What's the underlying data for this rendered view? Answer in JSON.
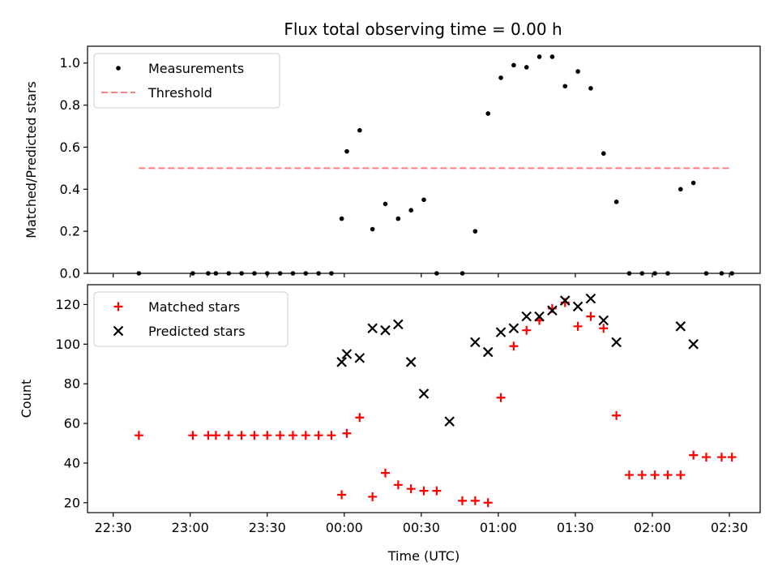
{
  "chart_data": [
    {
      "type": "scatter",
      "title": "Flux total observing time = 0.00 h",
      "xlabel": "",
      "ylabel": "Matched/Predicted stars",
      "ylim": [
        0,
        1.08
      ],
      "yticks": [
        "0.0",
        "0.2",
        "0.4",
        "0.6",
        "0.8",
        "1.0"
      ],
      "xlim": [
        "22:20",
        "02:42"
      ],
      "legend_position": "top-left",
      "series": [
        {
          "name": "Measurements",
          "color": "#000000",
          "marker": "dot",
          "x": [
            "22:40",
            "23:01",
            "23:07",
            "23:10",
            "23:15",
            "23:20",
            "23:25",
            "23:30",
            "23:35",
            "23:40",
            "23:45",
            "23:50",
            "23:55",
            "23:59",
            "00:01",
            "00:06",
            "00:11",
            "00:16",
            "00:21",
            "00:26",
            "00:31",
            "00:36",
            "00:46",
            "00:51",
            "00:56",
            "01:01",
            "01:06",
            "01:11",
            "01:16",
            "01:21",
            "01:26",
            "01:31",
            "01:36",
            "01:41",
            "01:46",
            "01:51",
            "01:56",
            "02:01",
            "02:06",
            "02:11",
            "02:16",
            "02:21",
            "02:27",
            "02:31"
          ],
          "y": [
            0.0,
            0.0,
            0.0,
            0.0,
            0.0,
            0.0,
            0.0,
            0.0,
            0.0,
            0.0,
            0.0,
            0.0,
            0.0,
            0.26,
            0.58,
            0.68,
            0.21,
            0.33,
            0.26,
            0.3,
            0.35,
            0.0,
            0.0,
            0.2,
            0.76,
            0.93,
            0.99,
            0.98,
            1.03,
            1.03,
            0.89,
            0.96,
            0.88,
            0.57,
            0.34,
            0.0,
            0.0,
            0.0,
            0.0,
            0.4,
            0.43,
            0.0,
            0.0,
            0.0
          ]
        },
        {
          "name": "Threshold",
          "color": "#ff7f7f",
          "style": "dashed",
          "x": [
            "22:40",
            "02:31"
          ],
          "y": [
            0.5,
            0.5
          ]
        }
      ]
    },
    {
      "type": "scatter",
      "title": "",
      "xlabel": "Time (UTC)",
      "ylabel": "Count",
      "ylim": [
        15,
        130
      ],
      "yticks": [
        "20",
        "40",
        "60",
        "80",
        "100",
        "120"
      ],
      "xlim": [
        "22:20",
        "02:42"
      ],
      "xticks": [
        "22:30",
        "23:00",
        "23:30",
        "00:00",
        "00:30",
        "01:00",
        "01:30",
        "02:00",
        "02:30"
      ],
      "legend_position": "top-left",
      "series": [
        {
          "name": "Matched stars",
          "color": "#ff0000",
          "marker": "plus",
          "x": [
            "22:40",
            "23:01",
            "23:07",
            "23:10",
            "23:15",
            "23:20",
            "23:25",
            "23:30",
            "23:35",
            "23:40",
            "23:45",
            "23:50",
            "23:55",
            "23:59",
            "00:01",
            "00:06",
            "00:11",
            "00:16",
            "00:21",
            "00:26",
            "00:31",
            "00:36",
            "00:46",
            "00:51",
            "00:56",
            "01:01",
            "01:06",
            "01:11",
            "01:16",
            "01:21",
            "01:26",
            "01:31",
            "01:36",
            "01:41",
            "01:46",
            "01:51",
            "01:56",
            "02:01",
            "02:06",
            "02:11",
            "02:16",
            "02:21",
            "02:27",
            "02:31"
          ],
          "y": [
            54,
            54,
            54,
            54,
            54,
            54,
            54,
            54,
            54,
            54,
            54,
            54,
            54,
            24,
            55,
            63,
            23,
            35,
            29,
            27,
            26,
            26,
            21,
            21,
            20,
            73,
            99,
            107,
            112,
            118,
            121,
            109,
            114,
            108,
            64,
            34,
            34,
            34,
            34,
            34,
            44,
            43,
            43,
            43
          ]
        },
        {
          "name": "Predicted stars",
          "color": "#000000",
          "marker": "x",
          "x": [
            "23:59",
            "00:01",
            "00:06",
            "00:11",
            "00:16",
            "00:21",
            "00:26",
            "00:31",
            "00:41",
            "00:51",
            "00:56",
            "01:01",
            "01:06",
            "01:11",
            "01:16",
            "01:21",
            "01:26",
            "01:31",
            "01:36",
            "01:41",
            "01:46",
            "02:11",
            "02:16"
          ],
          "y": [
            91,
            95,
            93,
            108,
            107,
            110,
            91,
            75,
            61,
            101,
            96,
            106,
            108,
            114,
            114,
            117,
            122,
            119,
            123,
            112,
            101,
            109,
            100
          ]
        }
      ]
    }
  ]
}
